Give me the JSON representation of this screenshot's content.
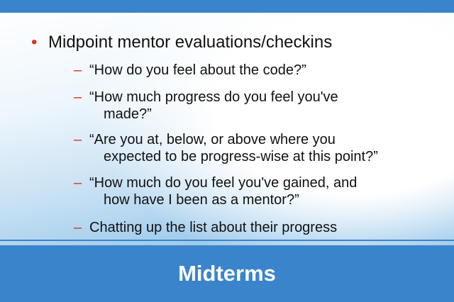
{
  "slide": {
    "main_bullet": "Midpoint mentor evaluations/checkins",
    "sub_bullets": [
      {
        "line1": "“How do you feel about the code?”",
        "line2": ""
      },
      {
        "line1": "“How much progress do you feel you've",
        "line2": "made?”"
      },
      {
        "line1": "“Are you at, below, or above where you",
        "line2": "expected to be progress-wise at this point?”"
      },
      {
        "line1": "“How much do you feel you've gained, and",
        "line2": "how have I been as a mentor?”"
      },
      {
        "line1": "Chatting up the list about their progress",
        "line2": ""
      }
    ],
    "footer_title": "Midterms"
  },
  "colors": {
    "accent_blue": "#3a84cc",
    "bullet_red": "#d9331e"
  }
}
